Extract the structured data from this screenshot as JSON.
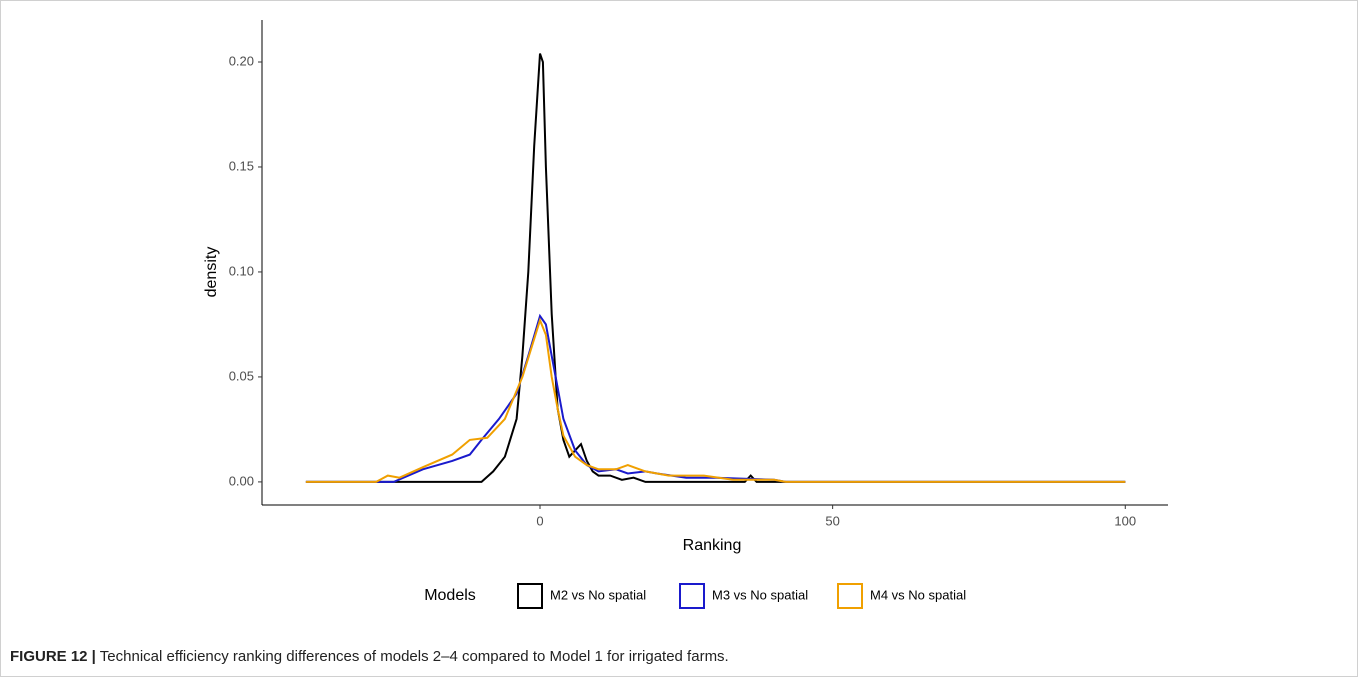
{
  "chart_data": {
    "type": "line",
    "xlabel": "Ranking",
    "ylabel": "density",
    "xlim": [
      -47.5,
      107.3
    ],
    "ylim": [
      -0.011,
      0.22
    ],
    "xticks": [
      0,
      50,
      100
    ],
    "yticks": [
      {
        "value": 0,
        "label": "0.00"
      },
      {
        "value": 0.05,
        "label": "0.05"
      },
      {
        "value": 0.1,
        "label": "0.10"
      },
      {
        "value": 0.15,
        "label": "0.15"
      },
      {
        "value": 0.2,
        "label": "0.20"
      }
    ],
    "legend_title": "Models",
    "series": [
      {
        "name": "M2 vs No spatial",
        "color": "#000000",
        "x": [
          -40,
          -10,
          -8,
          -6,
          -4,
          -3,
          -2,
          -1,
          0,
          0.5,
          1,
          2,
          3,
          4,
          5,
          6,
          7,
          8,
          9,
          10,
          12,
          14,
          16,
          18,
          35,
          36,
          37,
          100
        ],
        "values": [
          0,
          0,
          0.005,
          0.012,
          0.03,
          0.06,
          0.1,
          0.16,
          0.204,
          0.2,
          0.15,
          0.08,
          0.035,
          0.02,
          0.012,
          0.015,
          0.018,
          0.01,
          0.005,
          0.003,
          0.003,
          0.001,
          0.002,
          0,
          0,
          0.003,
          0,
          0
        ]
      },
      {
        "name": "M3 vs No spatial",
        "color": "#1a1acc",
        "x": [
          -40,
          -25,
          -20,
          -15,
          -12,
          -10,
          -7,
          -4,
          -2,
          0,
          1,
          2,
          3,
          4,
          6,
          8,
          10,
          13,
          15,
          18,
          20,
          25,
          30,
          40,
          42,
          100
        ],
        "values": [
          0,
          0,
          0.006,
          0.01,
          0.013,
          0.02,
          0.03,
          0.042,
          0.06,
          0.079,
          0.075,
          0.06,
          0.045,
          0.03,
          0.015,
          0.008,
          0.005,
          0.006,
          0.004,
          0.005,
          0.004,
          0.002,
          0.002,
          0.001,
          0,
          0
        ]
      },
      {
        "name": "M4 vs No spatial",
        "color": "#f0a000",
        "x": [
          -40,
          -28,
          -26,
          -24,
          -20,
          -15,
          -12,
          -9,
          -6,
          -3,
          0,
          1,
          2,
          3,
          4,
          6,
          8,
          10,
          13,
          15,
          18,
          22,
          28,
          33,
          40,
          42,
          100
        ],
        "values": [
          0,
          0,
          0.003,
          0.002,
          0.007,
          0.013,
          0.02,
          0.021,
          0.03,
          0.05,
          0.077,
          0.07,
          0.05,
          0.035,
          0.022,
          0.012,
          0.008,
          0.006,
          0.006,
          0.008,
          0.005,
          0.003,
          0.003,
          0.001,
          0.001,
          0,
          0
        ]
      }
    ]
  },
  "caption": {
    "label": "FIGURE 12 |",
    "text": "Technical efficiency ranking differences of models 2–4 compared to Model 1 for irrigated farms."
  }
}
